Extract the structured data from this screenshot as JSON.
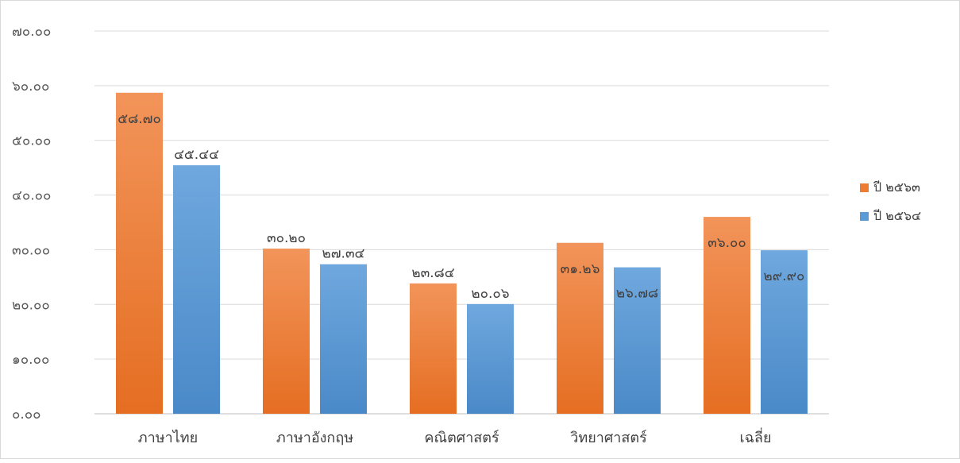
{
  "chart_data": {
    "type": "bar",
    "categories": [
      "ภาษาไทย",
      "ภาษาอังกฤษ",
      "คณิตศาสตร์",
      "วิทยาศาสตร์",
      "เฉลี่ย"
    ],
    "series": [
      {
        "name": "ปี ๒๕๖๓",
        "color": "#ED7D31",
        "values": [
          58.7,
          30.2,
          23.84,
          31.26,
          36.0
        ],
        "labels": [
          "๕๘.๗๐",
          "๓๐.๒๐",
          "๒๓.๘๔",
          "๓๑.๒๖",
          "๓๖.๐๐"
        ]
      },
      {
        "name": "ปี ๒๕๖๔",
        "color": "#5B9BD5",
        "values": [
          45.44,
          27.34,
          20.06,
          26.78,
          29.9
        ],
        "labels": [
          "๔๕.๔๔",
          "๒๗.๓๔",
          "๒๐.๐๖",
          "๒๖.๗๘",
          "๒๙.๙๐"
        ]
      }
    ],
    "yticks": [
      "๐.๐๐",
      "๑๐.๐๐",
      "๒๐.๐๐",
      "๓๐.๐๐",
      "๔๐.๐๐",
      "๕๐.๐๐",
      "๖๐.๐๐",
      "๗๐.๐๐"
    ],
    "ylim": [
      0,
      70
    ],
    "grid": true,
    "legend": "right"
  }
}
